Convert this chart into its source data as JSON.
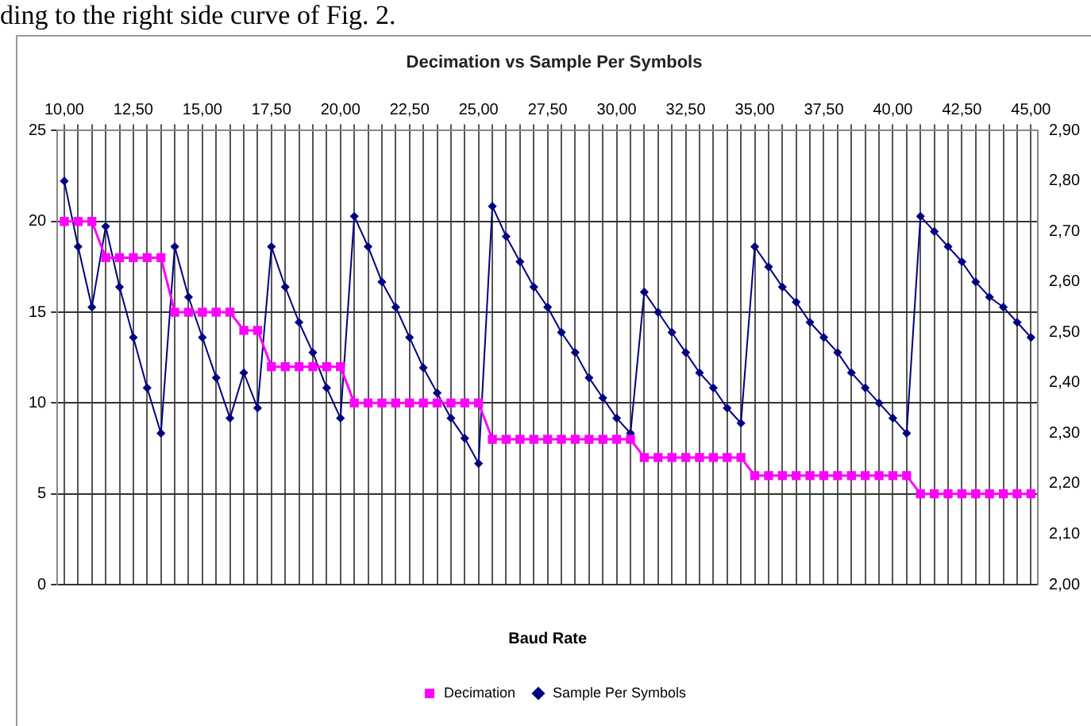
{
  "chart_data": {
    "type": "line",
    "title": "Decimation vs Sample Per Symbols",
    "xlabel": "Baud Rate",
    "annotations": [
      "ding to the right side curve of Fig. 2."
    ],
    "categories": [
      "10,00",
      null,
      null,
      null,
      null,
      "12,50",
      null,
      null,
      null,
      null,
      "15,00",
      null,
      null,
      null,
      null,
      "17,50",
      null,
      null,
      null,
      null,
      "20,00",
      null,
      null,
      null,
      null,
      "22,50",
      null,
      null,
      null,
      null,
      "25,00",
      null,
      null,
      null,
      null,
      "27,50",
      null,
      null,
      null,
      null,
      "30,00",
      null,
      null,
      null,
      null,
      "32,50",
      null,
      null,
      null,
      null,
      "35,00",
      null,
      null,
      null,
      null,
      "37,50",
      null,
      null,
      null,
      null,
      "40,00",
      null,
      null,
      null,
      null,
      "42,50",
      null,
      null,
      null,
      null,
      "45,00"
    ],
    "series": [
      {
        "name": "Decimation",
        "color": "#ff00ff",
        "marker": "square",
        "values": [
          20,
          20,
          20,
          18,
          18,
          18,
          18,
          18,
          15,
          15,
          15,
          15,
          15,
          14,
          14,
          12,
          12,
          12,
          12,
          12,
          12,
          10,
          10,
          10,
          10,
          10,
          10,
          10,
          10,
          10,
          10,
          8,
          8,
          8,
          8,
          8,
          8,
          8,
          8,
          8,
          8,
          8,
          7,
          7,
          7,
          7,
          7,
          7,
          7,
          7,
          6,
          6,
          6,
          6,
          6,
          6,
          6,
          6,
          6,
          6,
          6,
          6,
          5,
          5,
          5,
          5,
          5,
          5,
          5,
          5,
          5
        ]
      },
      {
        "name": "Sample Per Symbols",
        "color": "#000080",
        "marker": "diamond",
        "axis": "y2",
        "values": [
          2.8,
          2.67,
          2.55,
          2.71,
          2.59,
          2.49,
          2.39,
          2.3,
          2.67,
          2.57,
          2.49,
          2.41,
          2.33,
          2.42,
          2.35,
          2.67,
          2.59,
          2.52,
          2.46,
          2.39,
          2.33,
          2.73,
          2.67,
          2.6,
          2.55,
          2.49,
          2.43,
          2.38,
          2.33,
          2.29,
          2.24,
          2.75,
          2.69,
          2.64,
          2.59,
          2.55,
          2.5,
          2.46,
          2.41,
          2.37,
          2.33,
          2.3,
          2.58,
          2.54,
          2.5,
          2.46,
          2.42,
          2.39,
          2.35,
          2.32,
          2.67,
          2.63,
          2.59,
          2.56,
          2.52,
          2.49,
          2.46,
          2.42,
          2.39,
          2.36,
          2.33,
          2.3,
          2.73,
          2.7,
          2.67,
          2.64,
          2.6,
          2.57,
          2.55,
          2.52,
          2.49
        ]
      }
    ],
    "ylim": [
      0,
      25
    ],
    "yticks": [
      0,
      5,
      10,
      15,
      20,
      25
    ],
    "y2lim": [
      2.0,
      2.9
    ],
    "y2ticks": [
      {
        "value": 2.0,
        "label": "2,00"
      },
      {
        "value": 2.1,
        "label": "2,10"
      },
      {
        "value": 2.2,
        "label": "2,20"
      },
      {
        "value": 2.3,
        "label": "2,30"
      },
      {
        "value": 2.4,
        "label": "2,40"
      },
      {
        "value": 2.5,
        "label": "2,50"
      },
      {
        "value": 2.6,
        "label": "2,60"
      },
      {
        "value": 2.7,
        "label": "2,70"
      },
      {
        "value": 2.8,
        "label": "2,80"
      },
      {
        "value": 2.9,
        "label": "2,90"
      }
    ],
    "grid": true,
    "legend": "bottom"
  }
}
